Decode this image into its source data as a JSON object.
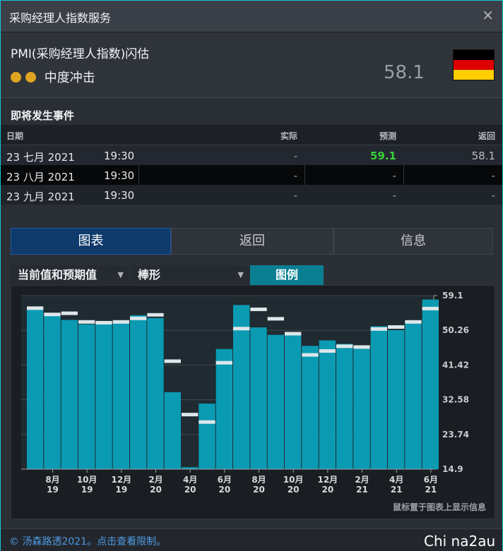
{
  "window": {
    "title": "采购经理人指数服务",
    "close_glyph": "×"
  },
  "indicator": {
    "name": "PMI(采购经理人指数)闪估",
    "impact_label": "中度冲击",
    "impact_color": "#e0a422",
    "value": "58.1",
    "flag": "germany-flag",
    "flag_colors": [
      "#000000",
      "#dd0000",
      "#ffce00"
    ]
  },
  "events": {
    "title": "即将发生事件",
    "headers": {
      "date": "日期",
      "actual": "实际",
      "forecast": "预测",
      "previous": "返回"
    },
    "rows": [
      {
        "date": "23 七月 2021",
        "time": "19:30",
        "actual": "-",
        "forecast": "59.1",
        "previous": "58.1"
      },
      {
        "date": "23 八月 2021",
        "time": "19:30",
        "actual": "-",
        "forecast": "-",
        "previous": "-"
      },
      {
        "date": "23 九月 2021",
        "time": "19:30",
        "actual": "-",
        "forecast": "-",
        "previous": "-"
      }
    ],
    "forecast_color": "#39d23c"
  },
  "tabs": [
    {
      "label": "图表"
    },
    {
      "label": "返回"
    },
    {
      "label": "信息"
    }
  ],
  "controls": {
    "series_select": "当前值和预期值",
    "type_select": "棒形",
    "legend_button": "图例"
  },
  "chart_hint": "鼠标置于图表上显示信息",
  "footer": "© 汤森路透2021。点击查看限制。",
  "watermark": "Chi na2au",
  "chart_data": {
    "type": "bar",
    "bar_color": "#0a9bb3",
    "forecast_marker_color": "#dde6ea",
    "ylim": [
      14.9,
      59.1
    ],
    "yticks": [
      "59.1",
      "50.26",
      "41.42",
      "32.58",
      "23.74",
      "14.9"
    ],
    "x_tick_labels": [
      [
        "8月",
        "19"
      ],
      [
        "10月",
        "19"
      ],
      [
        "12月",
        "19"
      ],
      [
        "2月",
        "20"
      ],
      [
        "4月",
        "20"
      ],
      [
        "6月",
        "20"
      ],
      [
        "8月",
        "20"
      ],
      [
        "10月",
        "20"
      ],
      [
        "12月",
        "20"
      ],
      [
        "2月",
        "21"
      ],
      [
        "4月",
        "21"
      ],
      [
        "6月",
        "21"
      ]
    ],
    "categories": [
      "7/19",
      "8/19",
      "9/19",
      "10/19",
      "11/19",
      "12/19",
      "1/20",
      "2/20",
      "3/20",
      "4/20",
      "5/20",
      "6/20",
      "7/20",
      "8/20",
      "9/20",
      "10/20",
      "11/20",
      "12/20",
      "1/21",
      "2/21",
      "3/21",
      "4/21",
      "5/21",
      "6/21"
    ],
    "series": [
      {
        "name": "实际",
        "values": [
          55.6,
          54.0,
          52.9,
          51.8,
          51.8,
          52.0,
          54.1,
          53.4,
          34.5,
          15.4,
          31.6,
          45.5,
          56.7,
          51.0,
          49.1,
          49.3,
          46.3,
          47.7,
          46.8,
          46.0,
          51.3,
          50.3,
          52.6,
          58.1
        ]
      },
      {
        "name": "预测",
        "values": [
          55.9,
          54.3,
          54.6,
          52.4,
          52.2,
          52.4,
          53.3,
          54.2,
          42.4,
          28.8,
          26.9,
          42.0,
          50.7,
          55.6,
          53.2,
          49.4,
          44.0,
          45.0,
          46.2,
          46.0,
          50.6,
          51.1,
          52.4,
          55.8
        ]
      }
    ]
  }
}
